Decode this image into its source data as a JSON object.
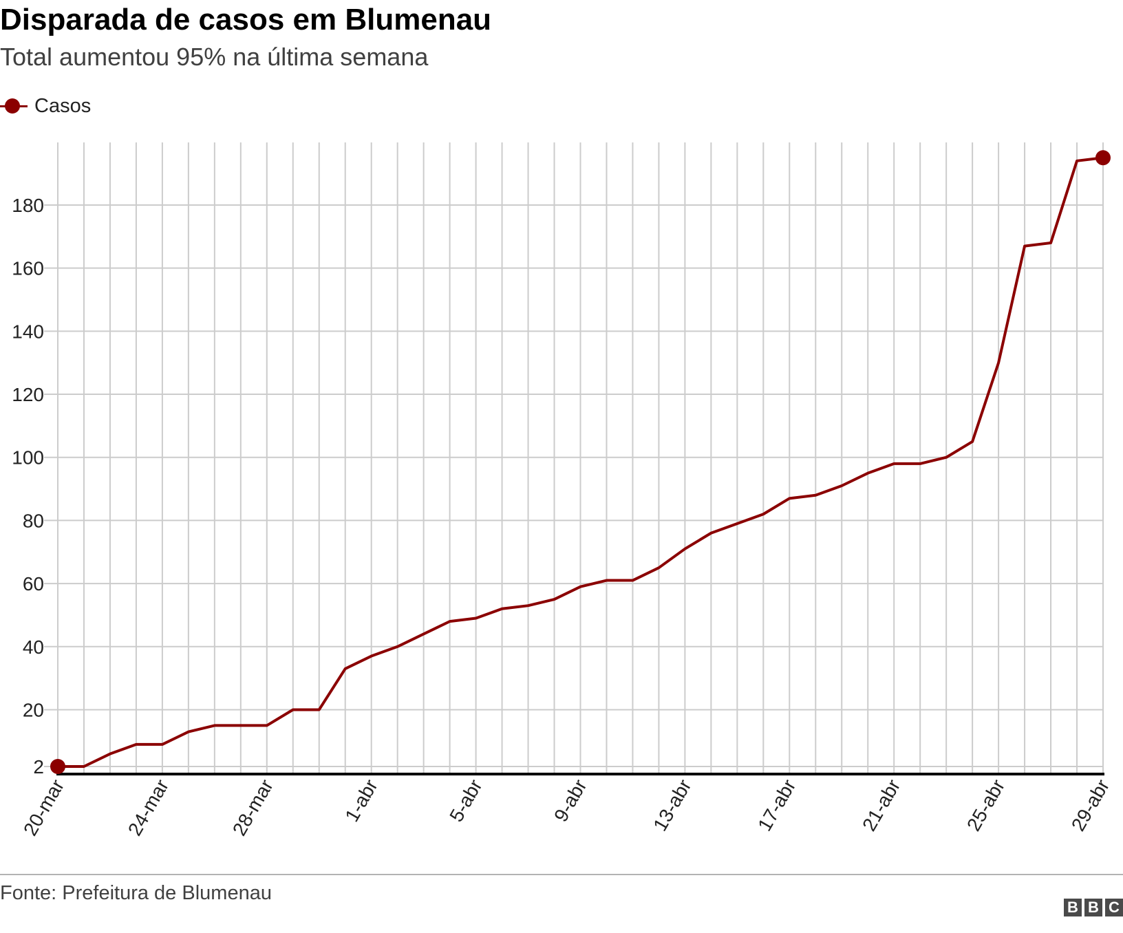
{
  "header": {
    "title": "Disparada de casos em Blumenau",
    "subtitle": "Total aumentou 95% na última semana"
  },
  "legend": {
    "label": "Casos"
  },
  "footer": {
    "source": "Fonte: Prefeitura de Blumenau",
    "logo_letters": [
      "B",
      "B",
      "C"
    ]
  },
  "colors": {
    "series": "#8b0000",
    "grid": "#cccccc",
    "baseline": "#000000",
    "logo": "#4a4a4a"
  },
  "chart_data": {
    "type": "line",
    "title": "Disparada de casos em Blumenau",
    "subtitle": "Total aumentou 95% na última semana",
    "xlabel": "",
    "ylabel": "",
    "x": [
      "20-mar",
      "21-mar",
      "22-mar",
      "23-mar",
      "24-mar",
      "25-mar",
      "26-mar",
      "27-mar",
      "28-mar",
      "29-mar",
      "30-mar",
      "31-mar",
      "1-abr",
      "2-abr",
      "3-abr",
      "4-abr",
      "5-abr",
      "6-abr",
      "7-abr",
      "8-abr",
      "9-abr",
      "10-abr",
      "11-abr",
      "12-abr",
      "13-abr",
      "14-abr",
      "15-abr",
      "16-abr",
      "17-abr",
      "18-abr",
      "19-abr",
      "20-abr",
      "21-abr",
      "22-abr",
      "23-abr",
      "24-abr",
      "25-abr",
      "26-abr",
      "27-abr",
      "28-abr",
      "29-abr"
    ],
    "x_tick_labels": [
      "20-mar",
      "24-mar",
      "28-mar",
      "1-abr",
      "5-abr",
      "9-abr",
      "13-abr",
      "17-abr",
      "21-abr",
      "25-abr",
      "29-abr"
    ],
    "series": [
      {
        "name": "Casos",
        "values": [
          2,
          2,
          6,
          9,
          9,
          13,
          15,
          15,
          15,
          20,
          20,
          33,
          37,
          40,
          44,
          48,
          49,
          52,
          53,
          55,
          59,
          61,
          61,
          65,
          71,
          76,
          79,
          82,
          87,
          88,
          91,
          95,
          98,
          98,
          100,
          105,
          130,
          167,
          168,
          194,
          195
        ]
      }
    ],
    "y_ticks": [
      2,
      20,
      40,
      60,
      80,
      100,
      120,
      140,
      160,
      180
    ],
    "ylim": [
      0,
      200
    ],
    "grid": true,
    "markers": "first-and-last",
    "legend_position": "top-left"
  }
}
